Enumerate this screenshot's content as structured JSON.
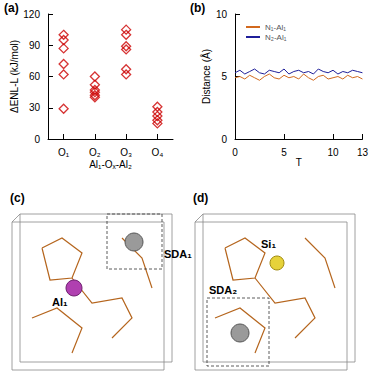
{
  "chart_data": [
    {
      "panel": "(a)",
      "type": "scatter",
      "categories": [
        "O₁",
        "O₂",
        "O₃",
        "O₄"
      ],
      "values": [
        [
          100,
          95,
          87,
          72,
          62,
          29
        ],
        [
          60,
          52,
          47,
          45,
          42,
          40
        ],
        [
          105,
          100,
          89,
          86,
          67,
          62
        ],
        [
          31,
          26,
          22,
          18,
          15
        ]
      ],
      "color": "#cc0000",
      "marker": "diamond",
      "xlabel": "Al₁-Oₓ-Al₂",
      "ylabel": "ΔENL-L (kJ/mol)",
      "ylim": [
        0,
        120
      ],
      "yticks": [
        0,
        30,
        60,
        90,
        120
      ]
    },
    {
      "panel": "(b)",
      "type": "line",
      "x": [
        0,
        0.5,
        1,
        1.5,
        2,
        2.5,
        3,
        3.5,
        4,
        4.5,
        5,
        5.5,
        6,
        6.5,
        7,
        7.5,
        8,
        8.5,
        9,
        9.5,
        10,
        10.5,
        11,
        11.5,
        12,
        12.5,
        13
      ],
      "series": [
        {
          "name": "N₁-Al₁",
          "color": "#d2691e",
          "values": [
            4.9,
            5.0,
            4.8,
            5.1,
            4.9,
            4.7,
            5.0,
            5.2,
            4.9,
            4.8,
            5.1,
            4.9,
            5.0,
            4.8,
            5.2,
            4.9,
            4.7,
            5.0,
            5.1,
            4.8,
            4.9,
            5.0,
            4.8,
            5.1,
            4.9,
            5.0,
            4.8
          ]
        },
        {
          "name": "N₂-Al₁",
          "color": "#1f1f9a",
          "values": [
            5.3,
            5.5,
            5.2,
            5.4,
            5.6,
            5.3,
            5.2,
            5.5,
            5.4,
            5.3,
            5.6,
            5.2,
            5.4,
            5.5,
            5.3,
            5.4,
            5.2,
            5.6,
            5.4,
            5.3,
            5.5,
            5.2,
            5.4,
            5.3,
            5.5,
            5.4,
            5.3
          ]
        }
      ],
      "xlabel": "T",
      "ylabel": "Distance (Å)",
      "xlim": [
        0,
        13
      ],
      "xticks": [
        0,
        5,
        10
      ],
      "ylim": [
        0,
        10
      ],
      "yticks": [
        0,
        5,
        10
      ],
      "legend": "upper left"
    }
  ],
  "structures": [
    {
      "panel": "(c)",
      "labels": [
        "SDA₁",
        "Al₁"
      ]
    },
    {
      "panel": "(d)",
      "labels": [
        "Si₁",
        "SDA₂"
      ]
    }
  ]
}
